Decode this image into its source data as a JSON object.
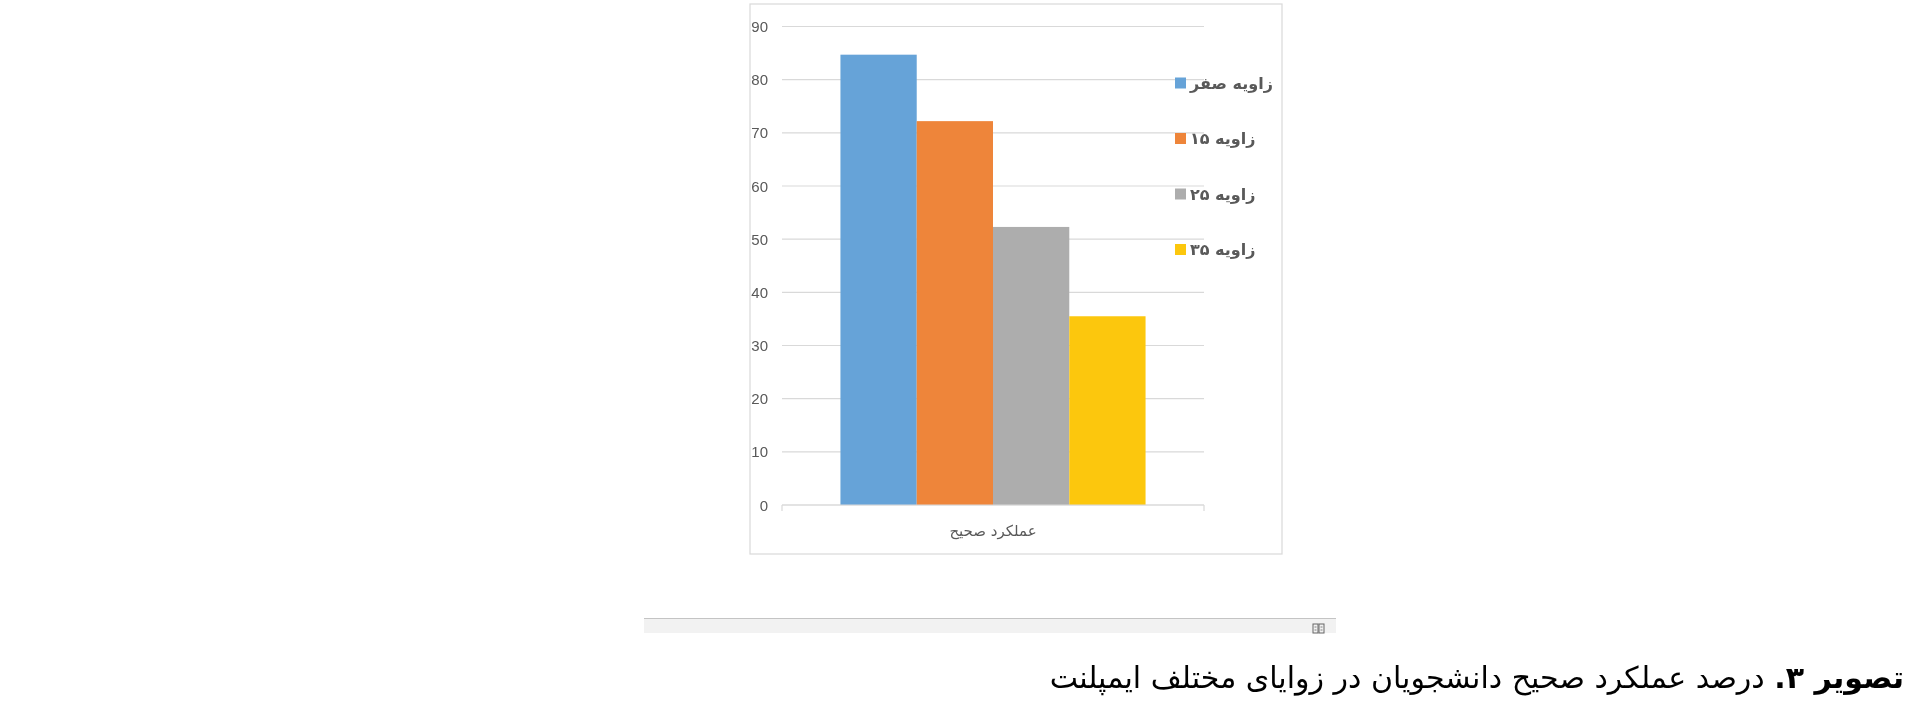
{
  "chart_data": {
    "type": "bar",
    "categories": [
      "عملکرد صحیح"
    ],
    "series": [
      {
        "name": "زاویه صفر",
        "color": "#66a3d8",
        "values": [
          84.7
        ]
      },
      {
        "name": "زاویه ۱۵",
        "color": "#ee853a",
        "values": [
          72.2
        ]
      },
      {
        "name": "زاویه ۲۵",
        "color": "#adadad",
        "values": [
          52.3
        ]
      },
      {
        "name": "زاویه ۳۵",
        "color": "#fcc70d",
        "values": [
          35.5
        ]
      }
    ],
    "ylim": [
      0,
      90
    ],
    "yticks": [
      0,
      10,
      20,
      30,
      40,
      50,
      60,
      70,
      80,
      90
    ],
    "grid": "y",
    "legend": "right",
    "annotations": [
      "تصویر ۳.",
      "درصد عملکرد صحیح دانشجویان در زوایای مختلف ایمپلنت"
    ]
  }
}
